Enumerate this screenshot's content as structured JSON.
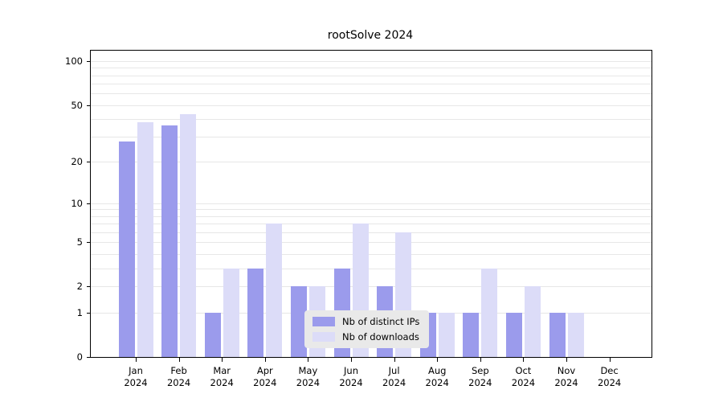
{
  "chart_data": {
    "type": "bar",
    "title": "rootSolve 2024",
    "scale": "log1p",
    "categories": [
      "Jan",
      "Feb",
      "Mar",
      "Apr",
      "May",
      "Jun",
      "Jul",
      "Aug",
      "Sep",
      "Oct",
      "Nov",
      "Dec"
    ],
    "year_label": "2024",
    "series": [
      {
        "name": "Nb of distinct IPs",
        "color": "#9b9bec",
        "values": [
          28,
          36,
          1,
          3,
          2,
          3,
          2,
          1,
          1,
          1,
          1,
          0
        ]
      },
      {
        "name": "Nb of downloads",
        "color": "#dcdcf8",
        "values": [
          38,
          43,
          3,
          7,
          2,
          7,
          6,
          1,
          3,
          2,
          1,
          0
        ]
      }
    ],
    "y_ticks": [
      {
        "v": 0,
        "label": "0"
      },
      {
        "v": 1,
        "label": "1"
      },
      {
        "v": 2,
        "label": "2"
      },
      {
        "v": 5,
        "label": "5"
      },
      {
        "v": 10,
        "label": "10"
      },
      {
        "v": 20,
        "label": "20"
      },
      {
        "v": 50,
        "label": "50"
      },
      {
        "v": 100,
        "label": "100"
      }
    ],
    "gridline_values": [
      1,
      2,
      3,
      4,
      5,
      6,
      7,
      8,
      9,
      10,
      20,
      30,
      40,
      50,
      60,
      70,
      80,
      90,
      100
    ],
    "ylim": [
      0,
      115
    ],
    "grid": "on",
    "legend_position": "lower center",
    "xlabel": "",
    "ylabel": ""
  }
}
